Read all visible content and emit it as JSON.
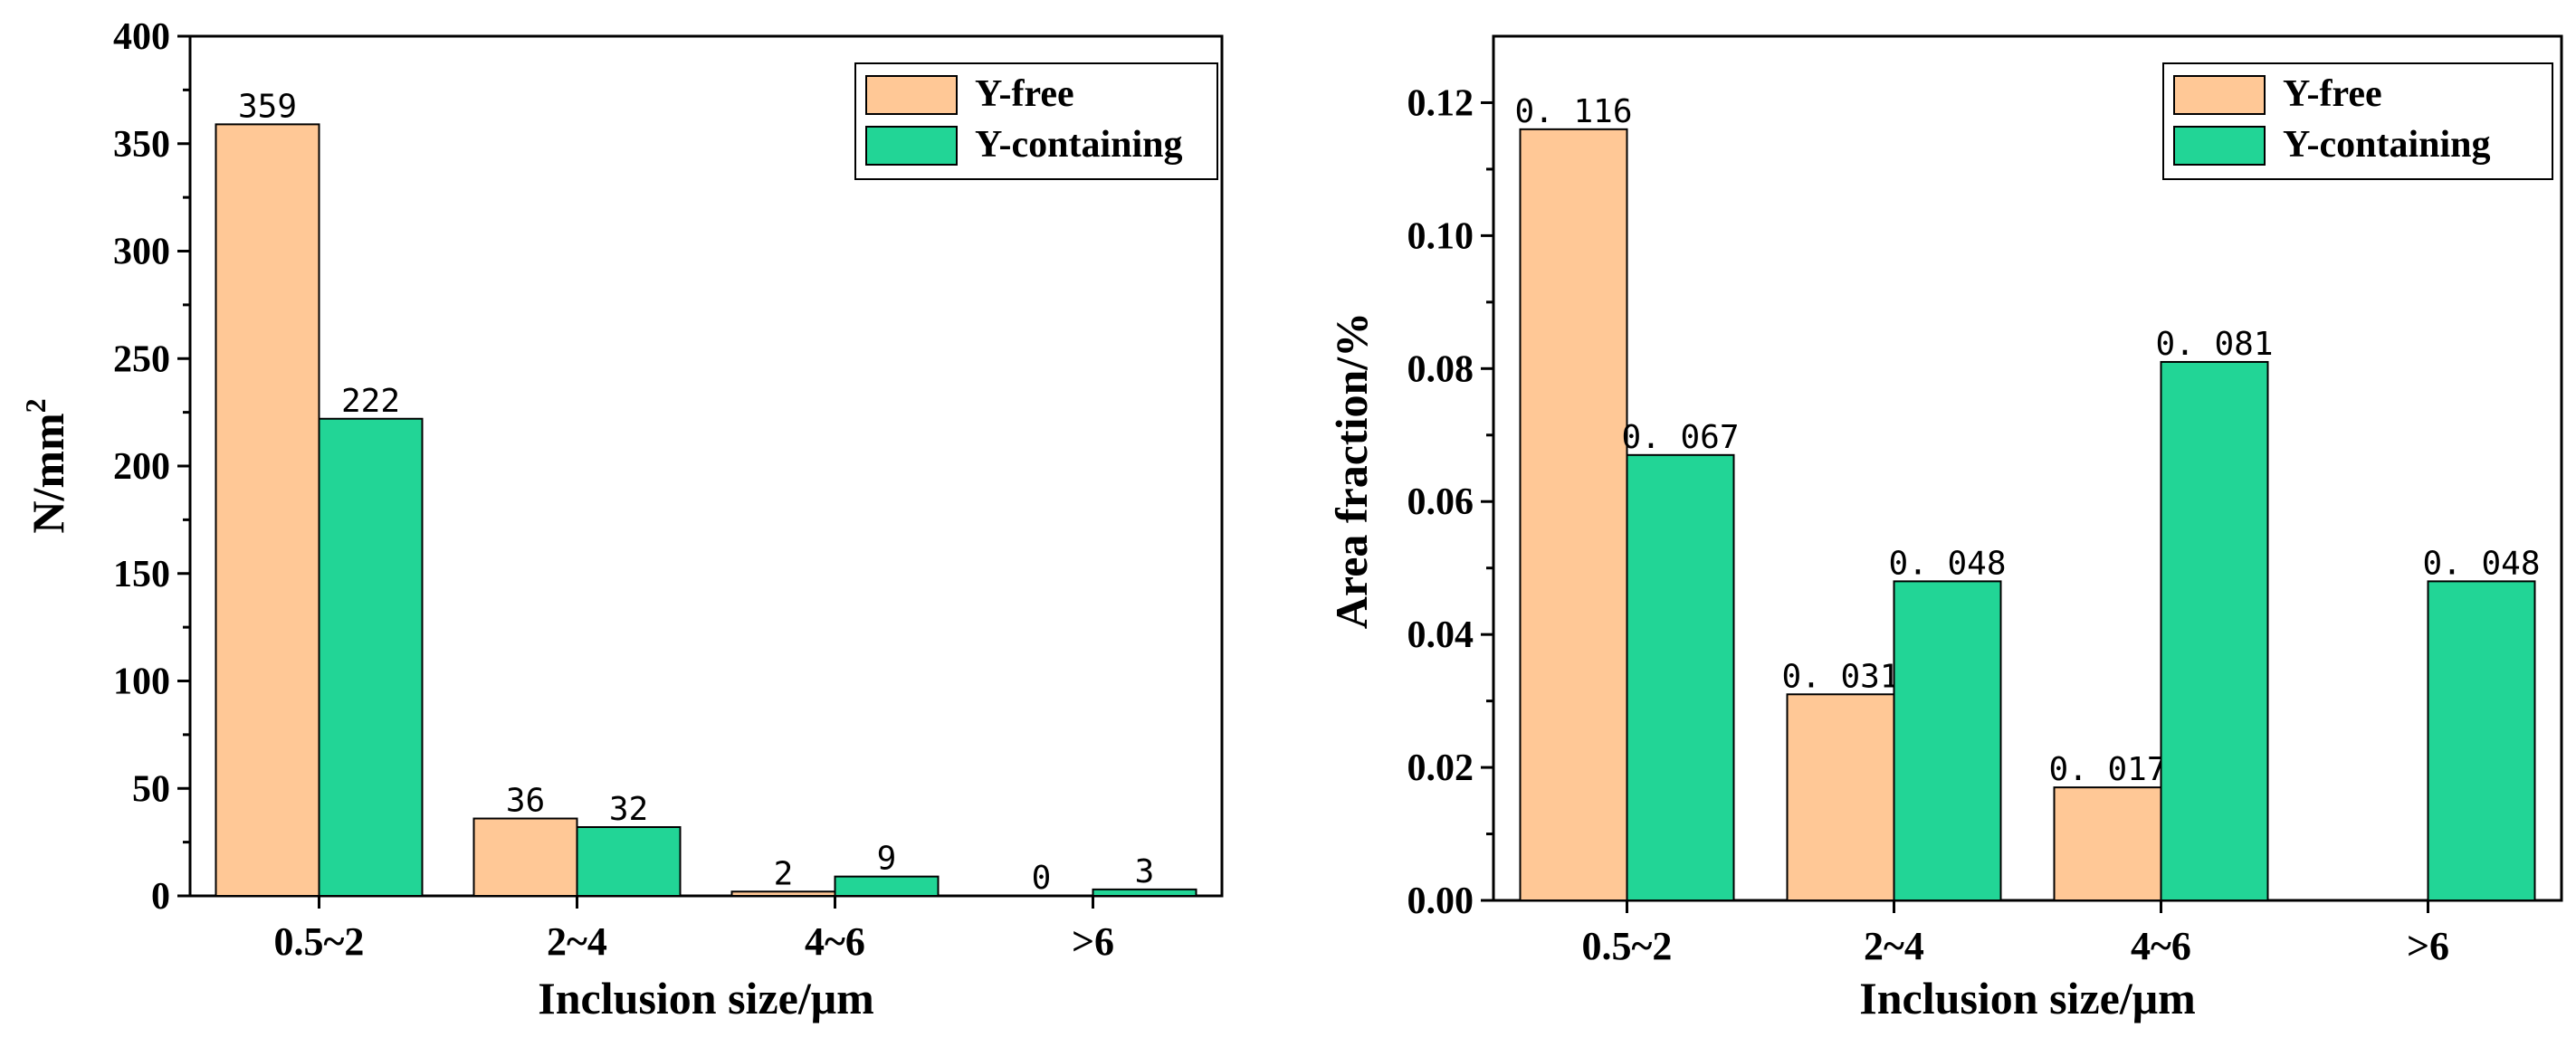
{
  "colors": {
    "y_free": "#FFC896",
    "y_containing": "#22D596"
  },
  "chart_data": [
    {
      "type": "bar",
      "title": "",
      "xlabel": "Inclusion size/μm",
      "ylabel": "N/mm",
      "ylabel_superscript": "2",
      "categories": [
        "0.5~2",
        "2~4",
        "4~6",
        ">6"
      ],
      "ylim": [
        0,
        400
      ],
      "yticks": [
        0,
        50,
        100,
        150,
        200,
        250,
        300,
        350,
        400
      ],
      "ytick_labels": [
        "0",
        "50",
        "100",
        "150",
        "200",
        "250",
        "300",
        "350",
        "400"
      ],
      "legend_position": "top-right",
      "series": [
        {
          "name": "Y-free",
          "color_key": "y_free",
          "values": [
            359,
            36,
            2,
            0
          ],
          "labels": [
            "359",
            "36",
            "2",
            "0"
          ]
        },
        {
          "name": "Y-containing",
          "color_key": "y_containing",
          "values": [
            222,
            32,
            9,
            3
          ],
          "labels": [
            "222",
            "32",
            "9",
            "3"
          ]
        }
      ]
    },
    {
      "type": "bar",
      "title": "",
      "xlabel": "Inclusion size/μm",
      "ylabel": "Area fraction/%",
      "ylabel_superscript": "",
      "categories": [
        "0.5~2",
        "2~4",
        "4~6",
        ">6"
      ],
      "ylim": [
        0,
        0.13
      ],
      "yticks": [
        0,
        0.02,
        0.04,
        0.06,
        0.08,
        0.1,
        0.12
      ],
      "ytick_labels": [
        "0.00",
        "0.02",
        "0.04",
        "0.06",
        "0.08",
        "0.10",
        "0.12"
      ],
      "legend_position": "top-right",
      "series": [
        {
          "name": "Y-free",
          "color_key": "y_free",
          "values": [
            0.116,
            0.031,
            0.017,
            0
          ],
          "labels": [
            "0. 116",
            "0. 031",
            "0. 017",
            ""
          ]
        },
        {
          "name": "Y-containing",
          "color_key": "y_containing",
          "values": [
            0.067,
            0.048,
            0.081,
            0.048
          ],
          "labels": [
            "0. 067",
            "0. 048",
            "0. 081",
            "0. 048"
          ]
        }
      ]
    }
  ]
}
